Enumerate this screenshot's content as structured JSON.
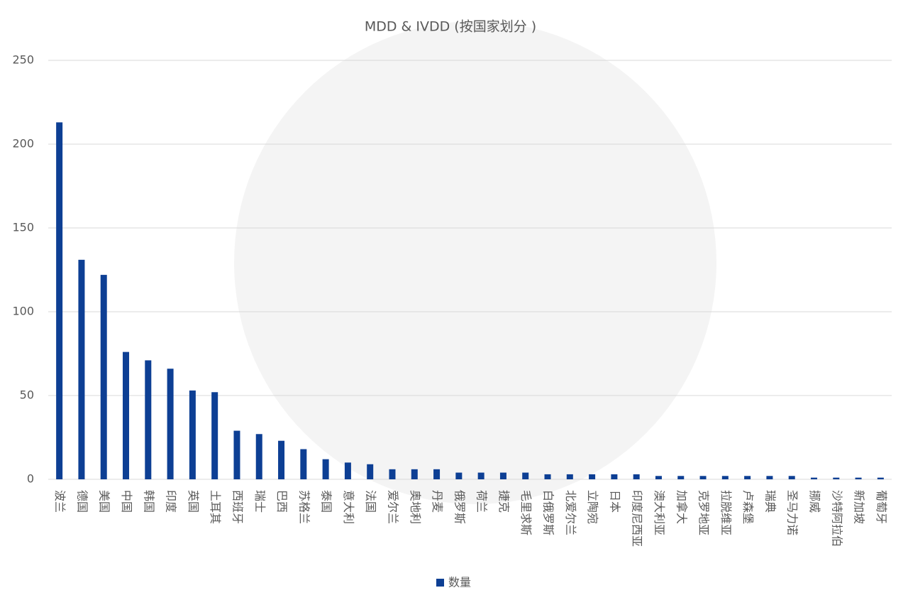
{
  "chart_data": {
    "type": "bar",
    "title": "MDD & IVDD (按国家划分 )",
    "categories": [
      "波兰",
      "德国",
      "美国",
      "中国",
      "韩国",
      "印度",
      "英国",
      "土耳其",
      "西班牙",
      "瑞士",
      "巴西",
      "苏格兰",
      "泰国",
      "意大利",
      "法国",
      "爱尔兰",
      "奥地利",
      "丹麦",
      "俄罗斯",
      "荷兰",
      "捷克",
      "毛里求斯",
      "白俄罗斯",
      "北爱尔兰",
      "立陶宛",
      "日本",
      "印度尼西亚",
      "澳大利亚",
      "加拿大",
      "克罗地亚",
      "拉脱维亚",
      "卢森堡",
      "瑞典",
      "圣马力诺",
      "挪威",
      "沙特阿拉伯",
      "新加坡",
      "葡萄牙"
    ],
    "series": [
      {
        "name": "数量",
        "color": "#0d3f94",
        "values": [
          213,
          131,
          122,
          76,
          71,
          66,
          53,
          52,
          29,
          27,
          23,
          18,
          12,
          10,
          9,
          6,
          6,
          6,
          4,
          4,
          4,
          4,
          3,
          3,
          3,
          3,
          3,
          2,
          2,
          2,
          2,
          2,
          2,
          2,
          1,
          1,
          1,
          1
        ]
      }
    ],
    "ylim": [
      0,
      250
    ],
    "yticks": [
      0,
      50,
      100,
      150,
      200,
      250
    ],
    "grid": true
  }
}
